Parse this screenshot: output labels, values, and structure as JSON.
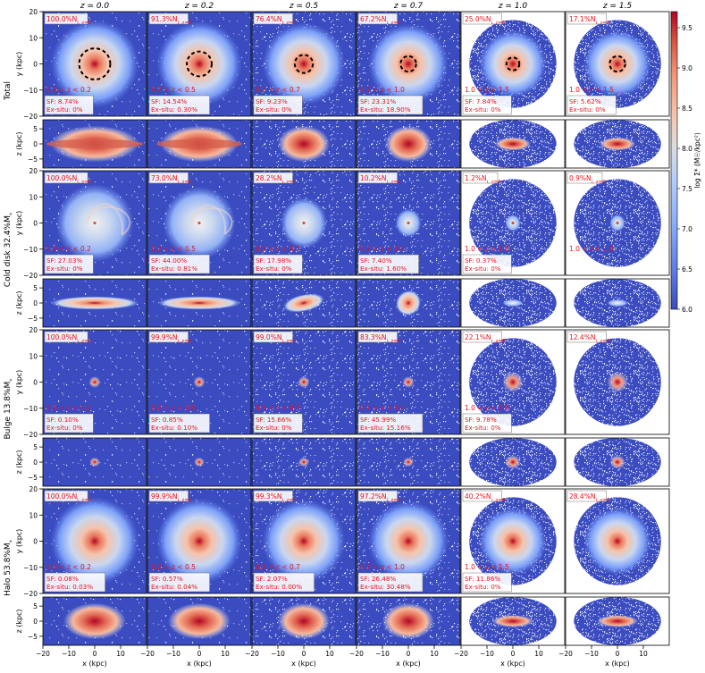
{
  "chart_data": {
    "type": "heatmap",
    "columns": [
      "z = 0.0",
      "z = 0.2",
      "z = 0.5",
      "z = 0.7",
      "z = 1.0",
      "z = 1.5"
    ],
    "components": [
      {
        "name": "Total",
        "row_label": "Total",
        "mass_fraction": "",
        "frac_label": [
          "100.0%N",
          "91.3%N",
          "76.4%N",
          "67.2%N",
          "25.0%N",
          "17.1%N"
        ],
        "redshift_range": [
          "0.0 < z < 0.2",
          "0.2 < z < 0.5",
          "0.5 < z < 0.7",
          "0.7 < z < 1.0",
          "1.0 < z < 1.5",
          "1.0 < z < 1.5"
        ],
        "sf": [
          "SF: 8.74%",
          "SF: 14.54%",
          "SF: 9.23%",
          "SF: 23.31%",
          "SF: 7.84%",
          "SF: 5.62%"
        ],
        "exsitu": [
          "Ex-situ: 0%",
          "Ex-situ: 0.30%",
          "Ex-situ: 0%",
          "Ex-situ: 18.90%",
          "Ex-situ: 0%",
          "Ex-situ: 0%"
        ],
        "has_circle": true,
        "circle_radius_kpc": [
          6.0,
          4.8,
          3.5,
          3.0,
          2.5,
          3.0
        ]
      },
      {
        "name": "Cold disk",
        "row_label": "Cold disk 32.4%M*",
        "mass_fraction": "32.4%",
        "frac_label": [
          "100.0%N",
          "73.0%N",
          "28.2%N",
          "10.2%N",
          "1.2%N",
          "0.9%N"
        ],
        "redshift_range": [
          "0.0 < z < 0.2",
          "0.2 < z < 0.5",
          "0.5 < z < 0.7",
          "0.7 < z < 1.0",
          "1.0 < z < 1.5",
          "1.0 < z < 1.5"
        ],
        "sf": [
          "SF: 27.03%",
          "SF: 44.00%",
          "SF: 17.98%",
          "SF: 7.40%",
          "SF: 0.37%",
          ""
        ],
        "exsitu": [
          "Ex-situ: 0%",
          "Ex-situ: 0.81%",
          "Ex-situ: 0%",
          "Ex-situ: 1.60%",
          "Ex-situ: 0%",
          ""
        ],
        "has_circle": false
      },
      {
        "name": "Bulge",
        "row_label": "Bulge 13.8%M*",
        "mass_fraction": "13.8%",
        "frac_label": [
          "100.0%N",
          "99.9%N",
          "99.0%N",
          "83.3%N",
          "22.1%N",
          "12.4%N"
        ],
        "redshift_range": [
          "0.0 < z < 0.2",
          "0.2 < z < 0.5",
          "0.5 < z < 0.7",
          "0.7 < z < 1.0",
          "1.0 < z < 1.5",
          ""
        ],
        "sf": [
          "SF: 0.10%",
          "SF: 0.85%",
          "SF: 15.66%",
          "SF: 45.99%",
          "SF: 9.78%",
          ""
        ],
        "exsitu": [
          "Ex-situ: 0%",
          "Ex-situ: 0.10%",
          "Ex-situ: 0%",
          "Ex-situ: 15.16%",
          "Ex-situ: 0%",
          ""
        ],
        "has_circle": false
      },
      {
        "name": "Halo",
        "row_label": "Halo 53.8%M*",
        "mass_fraction": "53.8%",
        "frac_label": [
          "100.0%N",
          "99.9%N",
          "99.3%N",
          "97.2%N",
          "40.2%N",
          "28.4%N"
        ],
        "redshift_range": [
          "0.0 < z < 0.2",
          "0.2 < z < 0.5",
          "0.5 < z < 0.7",
          "0.7 < z < 1.0",
          "1.0 < z < 1.5",
          ""
        ],
        "sf": [
          "SF: 0.08%",
          "SF: 0.57%",
          "SF: 2.07%",
          "SF: 26.48%",
          "SF: 11.86%",
          ""
        ],
        "exsitu": [
          "Ex-situ: 0.03%",
          "Ex-situ: 0.04%",
          "Ex-situ: 0.00%",
          "Ex-situ: 30.48%",
          "Ex-situ: 0%",
          ""
        ],
        "has_circle": false
      }
    ],
    "faceon_ylabel": "y (kpc)",
    "edgeon_ylabel": "z (kpc)",
    "xlabel": "x (kpc)",
    "faceon_yticks": [
      20,
      10,
      0,
      -10,
      -20
    ],
    "edgeon_yticks": [
      5,
      0,
      -5
    ],
    "xticks": [
      -20,
      -10,
      0,
      10
    ],
    "xlim": [
      -20,
      20
    ],
    "faceon_ylim": [
      -20,
      20
    ],
    "edgeon_ylim": [
      -8,
      8
    ],
    "colorbar": {
      "label": "log Σ* (M☉/kpc²)",
      "range": [
        6.0,
        9.7
      ],
      "ticks": [
        6.0,
        6.5,
        7.0,
        7.5,
        8.0,
        8.5,
        9.0,
        9.5
      ],
      "tick_labels": [
        "6.0",
        "6.5",
        "7.0",
        "7.5",
        "8.0",
        "8.5",
        "9.0",
        "9.5"
      ],
      "colormap": "coolwarm"
    }
  },
  "colors": {
    "annotation": "#e8141e",
    "low": "#3b4cc0",
    "high": "#b40426",
    "circle": "#000000"
  }
}
